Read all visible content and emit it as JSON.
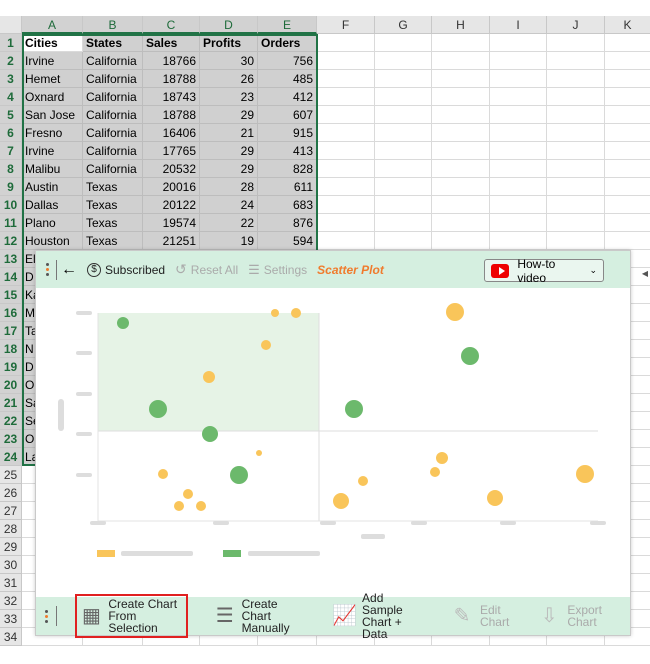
{
  "sheet": {
    "columns": [
      "A",
      "B",
      "C",
      "D",
      "E",
      "F",
      "G",
      "H",
      "I",
      "J",
      "K"
    ],
    "rows": [
      [
        "Cities",
        "States",
        "Sales",
        "Profits",
        "Orders"
      ],
      [
        "Irvine",
        "California",
        "18766",
        "30",
        "756"
      ],
      [
        "Hemet",
        "California",
        "18788",
        "26",
        "485"
      ],
      [
        "Oxnard",
        "California",
        "18743",
        "23",
        "412"
      ],
      [
        "San Jose",
        "California",
        "18788",
        "29",
        "607"
      ],
      [
        "Fresno",
        "California",
        "16406",
        "21",
        "915"
      ],
      [
        "Irvine",
        "California",
        "17765",
        "29",
        "413"
      ],
      [
        "Malibu",
        "California",
        "20532",
        "29",
        "828"
      ],
      [
        "Austin",
        "Texas",
        "20016",
        "28",
        "611"
      ],
      [
        "Dallas",
        "Texas",
        "20122",
        "24",
        "683"
      ],
      [
        "Plano",
        "Texas",
        "19574",
        "22",
        "876"
      ],
      [
        "Houston",
        "Texas",
        "21251",
        "19",
        "594"
      ]
    ],
    "hidden_col_a": [
      "El",
      "D",
      "Ka",
      "M",
      "Ta",
      "N",
      "D",
      "O",
      "Sa",
      "Se",
      "O",
      "La"
    ],
    "row_count": 34
  },
  "panel": {
    "toolbar": {
      "subscribed": "Subscribed",
      "reset": "Reset All",
      "settings": "Settings",
      "title": "Scatter Plot",
      "howto": "How-to video"
    },
    "actions": [
      {
        "label1": "Create Chart",
        "label2": "From Selection",
        "enabled": true
      },
      {
        "label1": "Create Chart",
        "label2": "Manually",
        "enabled": true
      },
      {
        "label1": "Add Sample",
        "label2": "Chart + Data",
        "enabled": true
      },
      {
        "label1": "Edit",
        "label2": "Chart",
        "enabled": false
      },
      {
        "label1": "Export",
        "label2": "Chart",
        "enabled": false
      }
    ],
    "colors": {
      "yellow": "#f9c55a",
      "green": "#6cb96c",
      "band": "#d5efe0",
      "accent": "#f07b2d"
    }
  }
}
